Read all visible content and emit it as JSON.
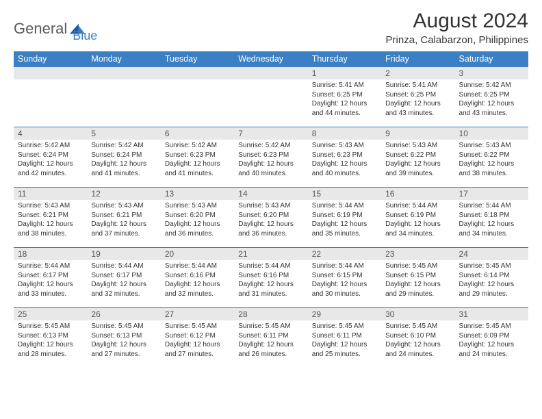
{
  "brand": {
    "text1": "General",
    "text2": "Blue"
  },
  "title": "August 2024",
  "location": "Prinza, Calabarzon, Philippines",
  "colors": {
    "header_bg": "#3b7fc4",
    "header_fg": "#ffffff",
    "daynum_bg": "#e8e8e8",
    "row_border": "#3b7fc4",
    "text": "#333333",
    "logo_gray": "#5a5a5a",
    "logo_blue": "#3b7fc4",
    "page_bg": "#ffffff"
  },
  "typography": {
    "title_fontsize": 30,
    "location_fontsize": 15,
    "dayheader_fontsize": 12.5,
    "daynum_fontsize": 12,
    "body_fontsize": 10
  },
  "day_headers": [
    "Sunday",
    "Monday",
    "Tuesday",
    "Wednesday",
    "Thursday",
    "Friday",
    "Saturday"
  ],
  "weeks": [
    [
      {
        "n": "",
        "sunrise": "",
        "sunset": "",
        "daylight": ""
      },
      {
        "n": "",
        "sunrise": "",
        "sunset": "",
        "daylight": ""
      },
      {
        "n": "",
        "sunrise": "",
        "sunset": "",
        "daylight": ""
      },
      {
        "n": "",
        "sunrise": "",
        "sunset": "",
        "daylight": ""
      },
      {
        "n": "1",
        "sunrise": "Sunrise: 5:41 AM",
        "sunset": "Sunset: 6:25 PM",
        "daylight": "Daylight: 12 hours and 44 minutes."
      },
      {
        "n": "2",
        "sunrise": "Sunrise: 5:41 AM",
        "sunset": "Sunset: 6:25 PM",
        "daylight": "Daylight: 12 hours and 43 minutes."
      },
      {
        "n": "3",
        "sunrise": "Sunrise: 5:42 AM",
        "sunset": "Sunset: 6:25 PM",
        "daylight": "Daylight: 12 hours and 43 minutes."
      }
    ],
    [
      {
        "n": "4",
        "sunrise": "Sunrise: 5:42 AM",
        "sunset": "Sunset: 6:24 PM",
        "daylight": "Daylight: 12 hours and 42 minutes."
      },
      {
        "n": "5",
        "sunrise": "Sunrise: 5:42 AM",
        "sunset": "Sunset: 6:24 PM",
        "daylight": "Daylight: 12 hours and 41 minutes."
      },
      {
        "n": "6",
        "sunrise": "Sunrise: 5:42 AM",
        "sunset": "Sunset: 6:23 PM",
        "daylight": "Daylight: 12 hours and 41 minutes."
      },
      {
        "n": "7",
        "sunrise": "Sunrise: 5:42 AM",
        "sunset": "Sunset: 6:23 PM",
        "daylight": "Daylight: 12 hours and 40 minutes."
      },
      {
        "n": "8",
        "sunrise": "Sunrise: 5:43 AM",
        "sunset": "Sunset: 6:23 PM",
        "daylight": "Daylight: 12 hours and 40 minutes."
      },
      {
        "n": "9",
        "sunrise": "Sunrise: 5:43 AM",
        "sunset": "Sunset: 6:22 PM",
        "daylight": "Daylight: 12 hours and 39 minutes."
      },
      {
        "n": "10",
        "sunrise": "Sunrise: 5:43 AM",
        "sunset": "Sunset: 6:22 PM",
        "daylight": "Daylight: 12 hours and 38 minutes."
      }
    ],
    [
      {
        "n": "11",
        "sunrise": "Sunrise: 5:43 AM",
        "sunset": "Sunset: 6:21 PM",
        "daylight": "Daylight: 12 hours and 38 minutes."
      },
      {
        "n": "12",
        "sunrise": "Sunrise: 5:43 AM",
        "sunset": "Sunset: 6:21 PM",
        "daylight": "Daylight: 12 hours and 37 minutes."
      },
      {
        "n": "13",
        "sunrise": "Sunrise: 5:43 AM",
        "sunset": "Sunset: 6:20 PM",
        "daylight": "Daylight: 12 hours and 36 minutes."
      },
      {
        "n": "14",
        "sunrise": "Sunrise: 5:43 AM",
        "sunset": "Sunset: 6:20 PM",
        "daylight": "Daylight: 12 hours and 36 minutes."
      },
      {
        "n": "15",
        "sunrise": "Sunrise: 5:44 AM",
        "sunset": "Sunset: 6:19 PM",
        "daylight": "Daylight: 12 hours and 35 minutes."
      },
      {
        "n": "16",
        "sunrise": "Sunrise: 5:44 AM",
        "sunset": "Sunset: 6:19 PM",
        "daylight": "Daylight: 12 hours and 34 minutes."
      },
      {
        "n": "17",
        "sunrise": "Sunrise: 5:44 AM",
        "sunset": "Sunset: 6:18 PM",
        "daylight": "Daylight: 12 hours and 34 minutes."
      }
    ],
    [
      {
        "n": "18",
        "sunrise": "Sunrise: 5:44 AM",
        "sunset": "Sunset: 6:17 PM",
        "daylight": "Daylight: 12 hours and 33 minutes."
      },
      {
        "n": "19",
        "sunrise": "Sunrise: 5:44 AM",
        "sunset": "Sunset: 6:17 PM",
        "daylight": "Daylight: 12 hours and 32 minutes."
      },
      {
        "n": "20",
        "sunrise": "Sunrise: 5:44 AM",
        "sunset": "Sunset: 6:16 PM",
        "daylight": "Daylight: 12 hours and 32 minutes."
      },
      {
        "n": "21",
        "sunrise": "Sunrise: 5:44 AM",
        "sunset": "Sunset: 6:16 PM",
        "daylight": "Daylight: 12 hours and 31 minutes."
      },
      {
        "n": "22",
        "sunrise": "Sunrise: 5:44 AM",
        "sunset": "Sunset: 6:15 PM",
        "daylight": "Daylight: 12 hours and 30 minutes."
      },
      {
        "n": "23",
        "sunrise": "Sunrise: 5:45 AM",
        "sunset": "Sunset: 6:15 PM",
        "daylight": "Daylight: 12 hours and 29 minutes."
      },
      {
        "n": "24",
        "sunrise": "Sunrise: 5:45 AM",
        "sunset": "Sunset: 6:14 PM",
        "daylight": "Daylight: 12 hours and 29 minutes."
      }
    ],
    [
      {
        "n": "25",
        "sunrise": "Sunrise: 5:45 AM",
        "sunset": "Sunset: 6:13 PM",
        "daylight": "Daylight: 12 hours and 28 minutes."
      },
      {
        "n": "26",
        "sunrise": "Sunrise: 5:45 AM",
        "sunset": "Sunset: 6:13 PM",
        "daylight": "Daylight: 12 hours and 27 minutes."
      },
      {
        "n": "27",
        "sunrise": "Sunrise: 5:45 AM",
        "sunset": "Sunset: 6:12 PM",
        "daylight": "Daylight: 12 hours and 27 minutes."
      },
      {
        "n": "28",
        "sunrise": "Sunrise: 5:45 AM",
        "sunset": "Sunset: 6:11 PM",
        "daylight": "Daylight: 12 hours and 26 minutes."
      },
      {
        "n": "29",
        "sunrise": "Sunrise: 5:45 AM",
        "sunset": "Sunset: 6:11 PM",
        "daylight": "Daylight: 12 hours and 25 minutes."
      },
      {
        "n": "30",
        "sunrise": "Sunrise: 5:45 AM",
        "sunset": "Sunset: 6:10 PM",
        "daylight": "Daylight: 12 hours and 24 minutes."
      },
      {
        "n": "31",
        "sunrise": "Sunrise: 5:45 AM",
        "sunset": "Sunset: 6:09 PM",
        "daylight": "Daylight: 12 hours and 24 minutes."
      }
    ]
  ]
}
